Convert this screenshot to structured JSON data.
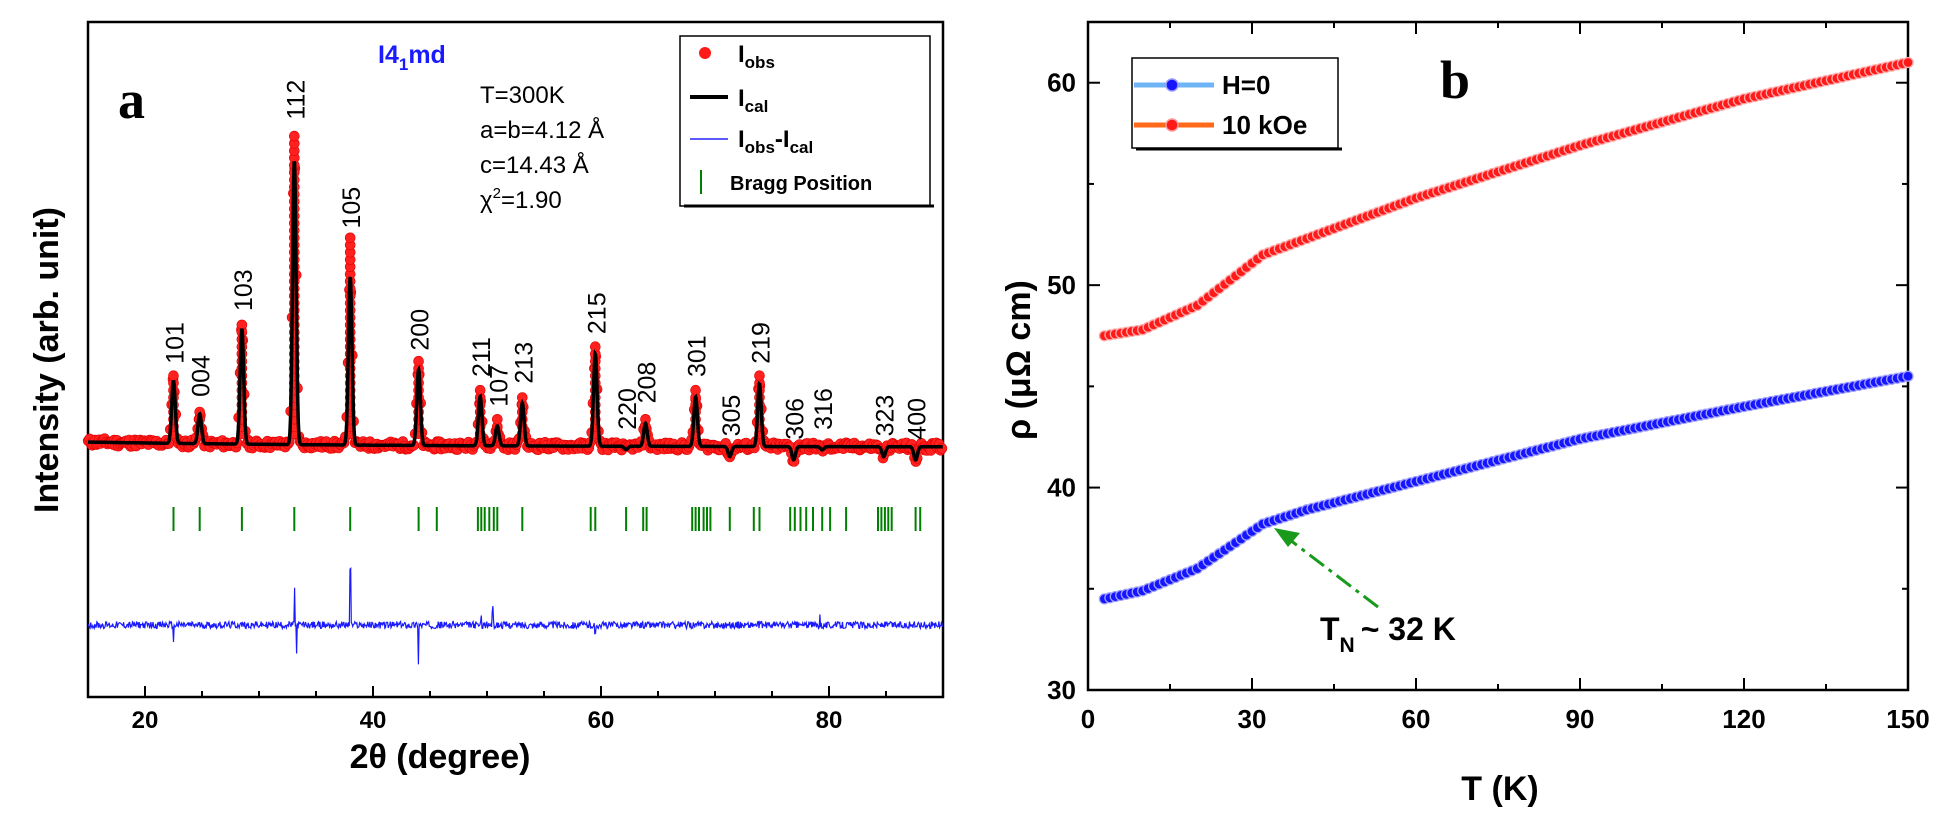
{
  "chart_data": [
    {
      "panel": "a",
      "type": "scatter",
      "title": "",
      "space_group": "I4₁md",
      "xlabel": "2θ (degree)",
      "ylabel": "Intensity (arb. unit)",
      "xlim": [
        15,
        90
      ],
      "ylim": [
        0,
        100
      ],
      "x_ticks": [
        20,
        40,
        60,
        80
      ],
      "params": [
        "T=300K",
        "a=b=4.12 Å",
        "c=14.43 Å",
        "χ²=1.90"
      ],
      "legend": {
        "position": "top-right",
        "entries": [
          {
            "label": "I_obs",
            "text": "Iobs",
            "color": "#ff1a1a"
          },
          {
            "label": "I_cal",
            "text": "Ical",
            "color": "#000000"
          },
          {
            "label": "I_obs-I_cal",
            "text": "Iobs-Ical",
            "color": "#0000ff"
          },
          {
            "label": "Bragg Position",
            "text": "Bragg Position",
            "color": "#008000"
          }
        ]
      },
      "background_level": 12,
      "peaks": [
        {
          "hkl": "101",
          "two_theta": 22.5,
          "intensity": 31
        },
        {
          "hkl": "004",
          "two_theta": 24.8,
          "intensity": 21
        },
        {
          "hkl": "103",
          "two_theta": 28.5,
          "intensity": 47
        },
        {
          "hkl": "112",
          "two_theta": 33.1,
          "intensity": 98
        },
        {
          "hkl": "105",
          "two_theta": 38.0,
          "intensity": 63
        },
        {
          "hkl": "200",
          "two_theta": 44.0,
          "intensity": 35
        },
        {
          "hkl": "211",
          "two_theta": 49.4,
          "intensity": 27
        },
        {
          "hkl": "107",
          "two_theta": 50.9,
          "intensity": 18
        },
        {
          "hkl": "213",
          "two_theta": 53.1,
          "intensity": 25
        },
        {
          "hkl": "215",
          "two_theta": 59.5,
          "intensity": 40
        },
        {
          "hkl": "220",
          "two_theta": 62.2,
          "intensity": 11
        },
        {
          "hkl": "208",
          "two_theta": 63.9,
          "intensity": 19
        },
        {
          "hkl": "301",
          "two_theta": 68.3,
          "intensity": 27
        },
        {
          "hkl": "305",
          "two_theta": 71.3,
          "intensity": 9
        },
        {
          "hkl": "219",
          "two_theta": 73.9,
          "intensity": 31
        },
        {
          "hkl": "306",
          "two_theta": 76.9,
          "intensity": 8
        },
        {
          "hkl": "316",
          "two_theta": 79.4,
          "intensity": 11
        },
        {
          "hkl": "323",
          "two_theta": 84.8,
          "intensity": 9
        },
        {
          "hkl": "400",
          "two_theta": 87.6,
          "intensity": 8
        }
      ],
      "bragg_positions": [
        22.5,
        24.8,
        28.5,
        33.1,
        38.0,
        44.0,
        45.6,
        49.2,
        49.5,
        49.8,
        50.2,
        50.6,
        50.9,
        53.1,
        59.1,
        59.5,
        62.2,
        63.7,
        64.0,
        68.0,
        68.3,
        68.6,
        69.0,
        69.3,
        69.6,
        71.3,
        73.4,
        73.9,
        76.6,
        77.0,
        77.5,
        78.0,
        78.6,
        79.4,
        80.1,
        81.5,
        84.3,
        84.6,
        84.9,
        85.2,
        85.5,
        87.6,
        88.0
      ],
      "difference_spikes": [
        {
          "two_theta": 22.5,
          "value": -9
        },
        {
          "two_theta": 33.1,
          "value": 18
        },
        {
          "two_theta": 33.3,
          "value": -14
        },
        {
          "two_theta": 38.0,
          "value": 26
        },
        {
          "two_theta": 44.0,
          "value": -17
        },
        {
          "two_theta": 49.5,
          "value": 4
        },
        {
          "two_theta": 50.5,
          "value": 7
        },
        {
          "two_theta": 59.5,
          "value": -5
        },
        {
          "two_theta": 79.2,
          "value": 5
        }
      ]
    },
    {
      "panel": "b",
      "type": "scatter",
      "xlabel": "T (K)",
      "ylabel": "ρ (μΩ cm)",
      "xlim": [
        0,
        150
      ],
      "ylim": [
        30,
        63
      ],
      "x_ticks": [
        0,
        30,
        60,
        90,
        120,
        150
      ],
      "y_ticks": [
        30,
        40,
        50,
        60
      ],
      "legend": {
        "position": "top-left"
      },
      "annotation": {
        "text": "T",
        "subscript": "N",
        "suffix": "~ 32 K",
        "points_to": [
          32,
          38.2
        ]
      },
      "series": [
        {
          "name": "H=0",
          "line_color": "#6fb4f5",
          "marker_color": "#1515ff",
          "x": [
            3,
            10,
            20,
            32,
            40,
            60,
            90,
            120,
            150
          ],
          "y": [
            34.5,
            34.9,
            36.0,
            38.2,
            38.9,
            40.3,
            42.4,
            44.0,
            45.5
          ]
        },
        {
          "name": "10 kOe",
          "line_color": "#ff6a1a",
          "marker_color": "#ff1a1a",
          "x": [
            3,
            10,
            20,
            32,
            40,
            60,
            90,
            120,
            150
          ],
          "y": [
            47.5,
            47.8,
            49.0,
            51.5,
            52.3,
            54.3,
            56.9,
            59.2,
            61.0
          ]
        }
      ]
    }
  ],
  "panel_labels": {
    "a": "a",
    "b": "b"
  },
  "panel_a_labels": {
    "space_group_main": "I4",
    "space_group_sub": "1",
    "space_group_suffix": "md"
  },
  "legend_a_text": {
    "obs_main": "I",
    "obs_sub": "obs",
    "cal_main": "I",
    "cal_sub": "cal",
    "diff_main": "I",
    "diff_sub1": "obs",
    "diff_mid": "-I",
    "diff_sub2": "cal",
    "bragg": "Bragg Position"
  },
  "chi_label": {
    "main": "χ",
    "sup": "2",
    "rest": "=1.90"
  },
  "tn_label": {
    "main": "T",
    "sub": "N",
    "rest": "~ 32 K"
  }
}
